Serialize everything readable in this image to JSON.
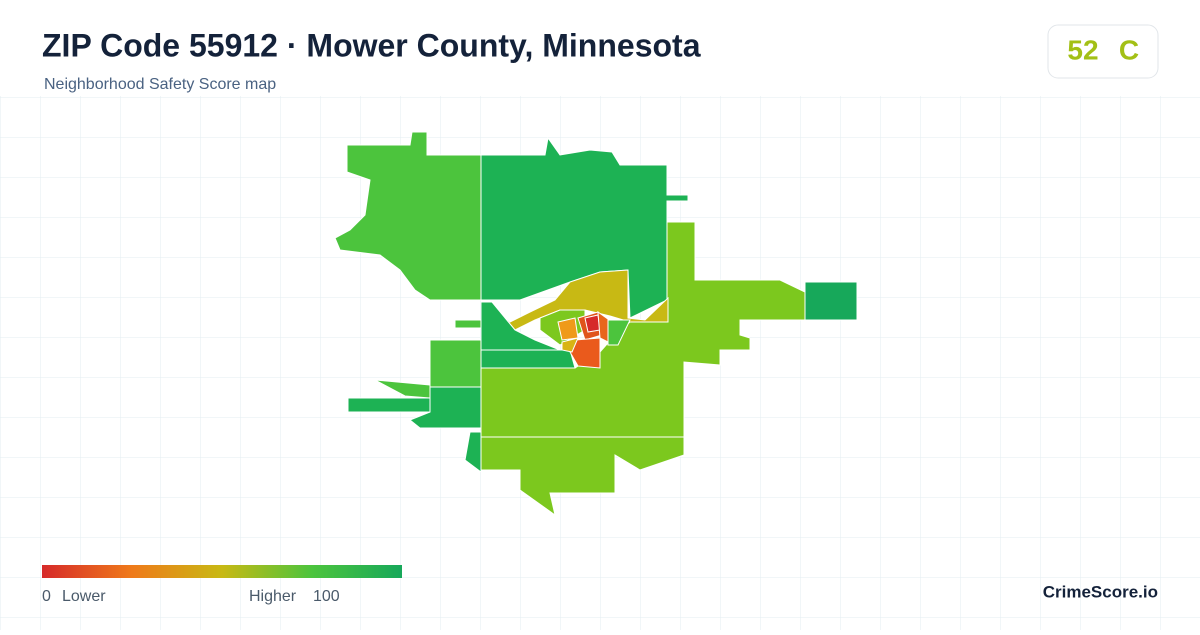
{
  "header": {
    "title": "ZIP Code 55912 · Mower County, Minnesota",
    "subtitle": "Neighborhood Safety Score map"
  },
  "score": {
    "value": 52,
    "grade": "C"
  },
  "legend": {
    "min": 0,
    "min_label": "Lower",
    "max_label": "Higher",
    "max": 100
  },
  "brand": "CrimeScore.io"
}
